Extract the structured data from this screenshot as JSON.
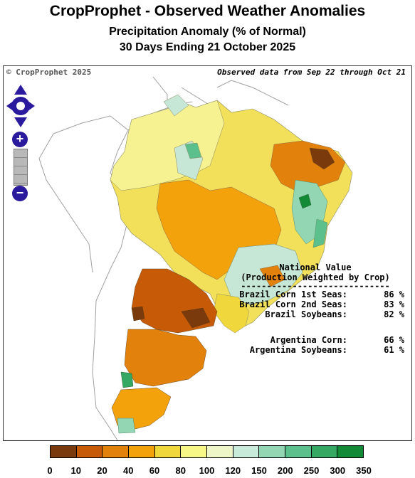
{
  "header": {
    "title": "CropProphet - Observed Weather Anomalies",
    "subtitle": "Precipitation Anomaly (% of Normal)",
    "period": "30 Days Ending 21 October 2025"
  },
  "map": {
    "copyright": "© CropProphet 2025",
    "observed_note": "Observed data from Sep 22 through Oct 21",
    "controls": {
      "zoom_in": "+",
      "zoom_out": "−",
      "pan": "pan-arrows-icon"
    }
  },
  "national_value": {
    "heading_line1": "National Value",
    "heading_line2": "(Production Weighted by Crop)",
    "divider": "-----------------------------",
    "rows": [
      {
        "label": "Brazil Corn 1st Seas:",
        "value": "86 %"
      },
      {
        "label": "Brazil Corn 2nd Seas:",
        "value": "83 %"
      },
      {
        "label": "Brazil Soybeans:",
        "value": "82 %"
      },
      {
        "label": "Argentina Corn:",
        "value": "66 %"
      },
      {
        "label": "Argentina Soybeans:",
        "value": "61 %"
      }
    ]
  },
  "legend": {
    "ticks": [
      "0",
      "10",
      "20",
      "40",
      "60",
      "80",
      "100",
      "120",
      "150",
      "200",
      "250",
      "300",
      "350"
    ],
    "colors": [
      "#7a3a0c",
      "#c65a06",
      "#e2820c",
      "#f3a20c",
      "#f0d83c",
      "#f7f787",
      "#eef6c8",
      "#c8ead8",
      "#92d6b4",
      "#5cc08c",
      "#35a864",
      "#128a36",
      "#0a5c12"
    ]
  }
}
